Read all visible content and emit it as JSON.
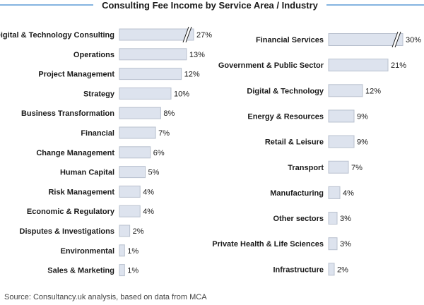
{
  "colors": {
    "bar_fill": "#dde3ee",
    "bar_stroke": "#b9c1cf",
    "rule": "#5b9bd5"
  },
  "chart_data": {
    "title": "Consulting Fee Income by Service Area / Industry",
    "source": "Source: Consultancy.uk analysis, based on data from MCA",
    "type": "bar",
    "orientation": "horizontal",
    "broken_bars": "largest bar in each panel is drawn with an axis break (//)",
    "panels": [
      {
        "name": "service-area",
        "categories": [
          "Digital & Technology Consulting",
          "Operations",
          "Project Management",
          "Strategy",
          "Business Transformation",
          "Financial",
          "Change Management",
          "Human Capital",
          "Risk Management",
          "Economic & Regulatory",
          "Disputes & Investigations",
          "Environmental",
          "Sales & Marketing"
        ],
        "values": [
          27,
          13,
          12,
          10,
          8,
          7,
          6,
          5,
          4,
          4,
          2,
          1,
          1
        ],
        "labels": [
          "27%",
          "13%",
          "12%",
          "10%",
          "8%",
          "7%",
          "6%",
          "5%",
          "4%",
          "4%",
          "2%",
          "1%",
          "1%"
        ],
        "broken": [
          true,
          false,
          false,
          false,
          false,
          false,
          false,
          false,
          false,
          false,
          false,
          false,
          false
        ]
      },
      {
        "name": "industry",
        "categories": [
          "Financial Services",
          "Government & Public Sector",
          "Digital & Technology",
          "Energy & Resources",
          "Retail & Leisure",
          "Transport",
          "Manufacturing",
          "Other sectors",
          "Private Health & Life Sciences",
          "Infrastructure"
        ],
        "values": [
          30,
          21,
          12,
          9,
          9,
          7,
          4,
          3,
          3,
          2
        ],
        "labels": [
          "30%",
          "21%",
          "12%",
          "9%",
          "9%",
          "7%",
          "4%",
          "3%",
          "3%",
          "2%"
        ],
        "broken": [
          true,
          false,
          false,
          false,
          false,
          false,
          false,
          false,
          false,
          false
        ]
      }
    ]
  }
}
